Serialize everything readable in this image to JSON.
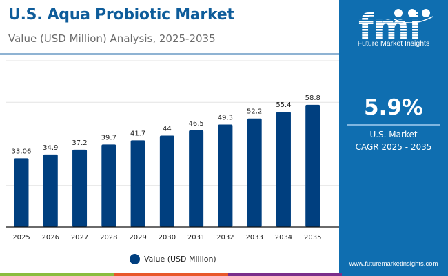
{
  "header": {
    "title": "U.S. Aqua Probiotic Market",
    "subtitle": "Value (USD Million) Analysis, 2025-2035"
  },
  "brand": {
    "logo_text": "fmi",
    "logo_caption": "Future Market Insights",
    "website": "www.futuremarketinsights.com",
    "panel_color": "#0f6eb0",
    "strip_colors": [
      "#8bbd3f",
      "#e8572a",
      "#7b2e8b",
      "#0f6eb0"
    ]
  },
  "kpi": {
    "value": "5.9%",
    "line1": "U.S. Market",
    "line2": "CAGR 2025 - 2035"
  },
  "chart_data": {
    "type": "bar",
    "title": "U.S. Aqua Probiotic Market",
    "subtitle": "Value (USD Million) Analysis, 2025-2035",
    "categories": [
      "2025",
      "2026",
      "2027",
      "2028",
      "2029",
      "2030",
      "2031",
      "2032",
      "2033",
      "2034",
      "2035"
    ],
    "series": [
      {
        "name": "Value (USD Million)",
        "color": "#003f7f",
        "values": [
          33.06,
          34.9,
          37.2,
          39.7,
          41.7,
          44,
          46.5,
          49.3,
          52.2,
          55.4,
          58.8
        ],
        "labels": [
          "33.06",
          "34.9",
          "37.2",
          "39.7",
          "41.7",
          "44",
          "46.5",
          "49.3",
          "52.2",
          "55.4",
          "58.8"
        ]
      }
    ],
    "xlabel": "",
    "ylabel": "",
    "ylim": [
      0,
      80
    ],
    "yticks": [
      0,
      20,
      40,
      60,
      80
    ],
    "ytick_labels_visible": false,
    "grid": true,
    "legend": "bottom-center"
  }
}
